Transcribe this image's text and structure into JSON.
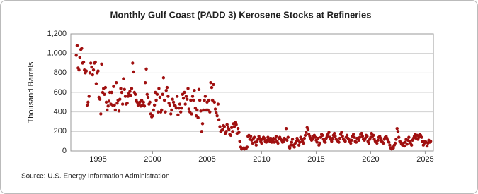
{
  "chart_data": {
    "type": "scatter",
    "title": "Monthly Gulf Coast (PADD 3) Kerosene Stocks at Refineries",
    "y_label": "Thousand Barrels",
    "source": "Source: U.S. Energy Information Administration",
    "color": "#a01010",
    "grid": true,
    "xlim": [
      1992.5,
      2025.75
    ],
    "xticks": [
      1995,
      2000,
      2005,
      2010,
      2015,
      2020,
      2025
    ],
    "ylim": [
      0,
      1200
    ],
    "yticks": [
      0,
      200,
      400,
      600,
      800,
      {
        "value": 1000,
        "label": "1,000"
      },
      {
        "value": 1200,
        "label": "1,200"
      }
    ],
    "x": [
      1993,
      1993.08,
      1993.17,
      1993.25,
      1993.33,
      1993.42,
      1993.5,
      1993.58,
      1993.67,
      1993.75,
      1993.83,
      1993.92,
      1994,
      1994.08,
      1994.17,
      1994.25,
      1994.33,
      1994.42,
      1994.5,
      1994.58,
      1994.67,
      1994.75,
      1994.83,
      1994.92,
      1995,
      1995.08,
      1995.17,
      1995.25,
      1995.33,
      1995.42,
      1995.5,
      1995.58,
      1995.67,
      1995.75,
      1995.83,
      1995.92,
      1996,
      1996.08,
      1996.17,
      1996.25,
      1996.33,
      1996.42,
      1996.5,
      1996.58,
      1996.67,
      1996.75,
      1996.83,
      1996.92,
      1997,
      1997.08,
      1997.17,
      1997.25,
      1997.33,
      1997.42,
      1997.5,
      1997.58,
      1997.67,
      1997.75,
      1997.83,
      1997.92,
      1998,
      1998.08,
      1998.17,
      1998.25,
      1998.33,
      1998.42,
      1998.5,
      1998.58,
      1998.67,
      1998.75,
      1998.83,
      1998.92,
      1999,
      1999.08,
      1999.17,
      1999.25,
      1999.33,
      1999.42,
      1999.5,
      1999.58,
      1999.67,
      1999.75,
      1999.83,
      1999.92,
      2000,
      2000.08,
      2000.17,
      2000.25,
      2000.33,
      2000.42,
      2000.5,
      2000.58,
      2000.67,
      2000.75,
      2000.83,
      2000.92,
      2001,
      2001.08,
      2001.17,
      2001.25,
      2001.33,
      2001.42,
      2001.5,
      2001.58,
      2001.67,
      2001.75,
      2001.83,
      2001.92,
      2002,
      2002.08,
      2002.17,
      2002.25,
      2002.33,
      2002.42,
      2002.5,
      2002.58,
      2002.67,
      2002.75,
      2002.83,
      2002.92,
      2003,
      2003.08,
      2003.17,
      2003.25,
      2003.33,
      2003.42,
      2003.5,
      2003.58,
      2003.67,
      2003.75,
      2003.83,
      2003.92,
      2004,
      2004.08,
      2004.17,
      2004.25,
      2004.33,
      2004.42,
      2004.5,
      2004.58,
      2004.67,
      2004.75,
      2004.83,
      2004.92,
      2005,
      2005.08,
      2005.17,
      2005.25,
      2005.33,
      2005.42,
      2005.5,
      2005.58,
      2005.67,
      2005.75,
      2005.83,
      2005.92,
      2006,
      2006.08,
      2006.17,
      2006.25,
      2006.33,
      2006.42,
      2006.5,
      2006.58,
      2006.67,
      2006.75,
      2006.83,
      2006.92,
      2007,
      2007.08,
      2007.17,
      2007.25,
      2007.33,
      2007.42,
      2007.5,
      2007.58,
      2007.67,
      2007.75,
      2007.83,
      2007.92,
      2008,
      2008.08,
      2008.17,
      2008.25,
      2008.33,
      2008.42,
      2008.5,
      2008.58,
      2008.67,
      2008.75,
      2008.83,
      2008.92,
      2009,
      2009.08,
      2009.17,
      2009.25,
      2009.33,
      2009.42,
      2009.5,
      2009.58,
      2009.67,
      2009.75,
      2009.83,
      2009.92,
      2010,
      2010.08,
      2010.17,
      2010.25,
      2010.33,
      2010.42,
      2010.5,
      2010.58,
      2010.67,
      2010.75,
      2010.83,
      2010.92,
      2011,
      2011.08,
      2011.17,
      2011.25,
      2011.33,
      2011.42,
      2011.5,
      2011.58,
      2011.67,
      2011.75,
      2011.83,
      2011.92,
      2012,
      2012.08,
      2012.17,
      2012.25,
      2012.33,
      2012.42,
      2012.5,
      2012.58,
      2012.67,
      2012.75,
      2012.83,
      2012.92,
      2013,
      2013.08,
      2013.17,
      2013.25,
      2013.33,
      2013.42,
      2013.5,
      2013.58,
      2013.67,
      2013.75,
      2013.83,
      2013.92,
      2014,
      2014.08,
      2014.17,
      2014.25,
      2014.33,
      2014.42,
      2014.5,
      2014.58,
      2014.67,
      2014.75,
      2014.83,
      2014.92,
      2015,
      2015.08,
      2015.17,
      2015.25,
      2015.33,
      2015.42,
      2015.5,
      2015.58,
      2015.67,
      2015.75,
      2015.83,
      2015.92,
      2016,
      2016.08,
      2016.17,
      2016.25,
      2016.33,
      2016.42,
      2016.5,
      2016.58,
      2016.67,
      2016.75,
      2016.83,
      2016.92,
      2017,
      2017.08,
      2017.17,
      2017.25,
      2017.33,
      2017.42,
      2017.5,
      2017.58,
      2017.67,
      2017.75,
      2017.83,
      2017.92,
      2018,
      2018.08,
      2018.17,
      2018.25,
      2018.33,
      2018.42,
      2018.5,
      2018.58,
      2018.67,
      2018.75,
      2018.83,
      2018.92,
      2019,
      2019.08,
      2019.17,
      2019.25,
      2019.33,
      2019.42,
      2019.5,
      2019.58,
      2019.67,
      2019.75,
      2019.83,
      2019.92,
      2020,
      2020.08,
      2020.17,
      2020.25,
      2020.33,
      2020.42,
      2020.5,
      2020.58,
      2020.67,
      2020.75,
      2020.83,
      2020.92,
      2021,
      2021.08,
      2021.17,
      2021.25,
      2021.33,
      2021.42,
      2021.5,
      2021.58,
      2021.67,
      2021.75,
      2021.83,
      2021.92,
      2022,
      2022.08,
      2022.17,
      2022.25,
      2022.33,
      2022.42,
      2022.5,
      2022.58,
      2022.67,
      2022.75,
      2022.83,
      2022.92,
      2023,
      2023.08,
      2023.17,
      2023.25,
      2023.33,
      2023.42,
      2023.5,
      2023.58,
      2023.67,
      2023.75,
      2023.83,
      2023.92,
      2024,
      2024.08,
      2024.17,
      2024.25,
      2024.33,
      2024.42,
      2024.5,
      2024.58,
      2024.67,
      2024.75,
      2024.83,
      2024.92,
      2025,
      2025.08,
      2025.17,
      2025.25,
      2025.33,
      2025.42,
      2025.5
    ],
    "values": [
      980,
      1080,
      850,
      830,
      960,
      1040,
      1050,
      900,
      910,
      830,
      800,
      820,
      470,
      500,
      560,
      800,
      900,
      860,
      780,
      830,
      900,
      910,
      690,
      800,
      820,
      550,
      530,
      380,
      890,
      600,
      640,
      580,
      650,
      500,
      420,
      460,
      510,
      600,
      480,
      600,
      470,
      660,
      470,
      420,
      700,
      490,
      520,
      410,
      530,
      640,
      600,
      480,
      740,
      630,
      560,
      480,
      490,
      560,
      590,
      610,
      570,
      640,
      900,
      810,
      600,
      580,
      520,
      500,
      470,
      480,
      500,
      460,
      520,
      470,
      500,
      460,
      700,
      840,
      580,
      550,
      480,
      500,
      380,
      350,
      360,
      420,
      470,
      600,
      520,
      580,
      400,
      640,
      550,
      400,
      420,
      580,
      750,
      520,
      400,
      620,
      650,
      560,
      490,
      470,
      380,
      420,
      530,
      500,
      470,
      460,
      440,
      560,
      370,
      440,
      480,
      400,
      440,
      580,
      540,
      600,
      480,
      560,
      530,
      640,
      430,
      400,
      520,
      380,
      560,
      520,
      620,
      440,
      360,
      420,
      340,
      630,
      520,
      410,
      200,
      280,
      420,
      520,
      560,
      420,
      500,
      420,
      520,
      400,
      700,
      650,
      520,
      680,
      500,
      430,
      390,
      360,
      480,
      320,
      250,
      200,
      210,
      220,
      260,
      250,
      180,
      200,
      270,
      240,
      220,
      170,
      160,
      240,
      200,
      280,
      250,
      290,
      270,
      180,
      230,
      190,
      100,
      40,
      20,
      25,
      30,
      20,
      30,
      25,
      40,
      150,
      160,
      120,
      150,
      110,
      80,
      130,
      140,
      90,
      60,
      100,
      120,
      150,
      130,
      100,
      80,
      120,
      140,
      130,
      100,
      90,
      110,
      140,
      120,
      100,
      130,
      90,
      110,
      130,
      90,
      120,
      150,
      100,
      80,
      130,
      140,
      120,
      110,
      90,
      100,
      130,
      120,
      230,
      110,
      140,
      40,
      30,
      60,
      90,
      120,
      60,
      40,
      80,
      100,
      130,
      110,
      60,
      90,
      140,
      120,
      100,
      80,
      130,
      160,
      190,
      240,
      220,
      170,
      150,
      130,
      110,
      120,
      150,
      160,
      140,
      110,
      90,
      130,
      60,
      80,
      140,
      170,
      160,
      120,
      100,
      90,
      130,
      150,
      170,
      190,
      140,
      120,
      100,
      130,
      160,
      180,
      150,
      120,
      110,
      100,
      90,
      130,
      170,
      190,
      150,
      120,
      110,
      100,
      140,
      160,
      130,
      120,
      100,
      80,
      110,
      150,
      170,
      140,
      100,
      90,
      130,
      120,
      110,
      140,
      170,
      180,
      150,
      120,
      110,
      130,
      160,
      150,
      100,
      80,
      120,
      140,
      180,
      150,
      160,
      120,
      100,
      90,
      80,
      110,
      140,
      150,
      130,
      100,
      90,
      80,
      120,
      140,
      150,
      130,
      110,
      90,
      60,
      30,
      20,
      40,
      30,
      60,
      80,
      120,
      230,
      200,
      140,
      100,
      90,
      70,
      60,
      80,
      50,
      90,
      120,
      70,
      110,
      140,
      100,
      80,
      60,
      110,
      130,
      150,
      170,
      130,
      160,
      120,
      140,
      170,
      160,
      140,
      100,
      60,
      80,
      100,
      90,
      50,
      80,
      110,
      90,
      100
    ]
  }
}
